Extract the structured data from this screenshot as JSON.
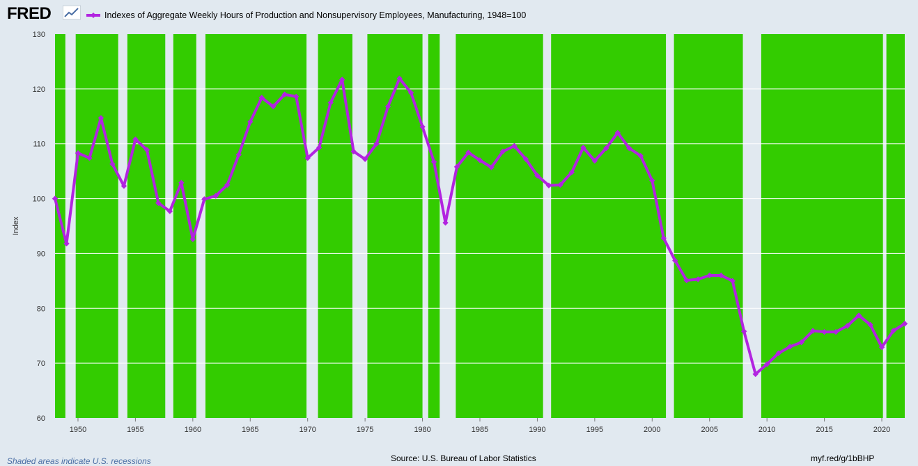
{
  "brand": {
    "logo_text": "FRED",
    "logo_icon": "line-chart-icon"
  },
  "footer": {
    "recession_note": "Shaded areas indicate U.S. recessions",
    "source": "Source: U.S. Bureau of Labor Statistics",
    "short_url": "myf.red/g/1bBHP"
  },
  "colors": {
    "background": "#e1e9f0",
    "plot_fill": "#33cc00",
    "recession_band": "#e1e9f0",
    "series": "#b224e0",
    "gridline": "#ffffff"
  },
  "chart_data": {
    "type": "line",
    "title": "",
    "xlabel": "",
    "ylabel": "Index",
    "xlim": [
      1948,
      2022
    ],
    "ylim": [
      60,
      130
    ],
    "yticks": [
      60,
      70,
      80,
      90,
      100,
      110,
      120,
      130
    ],
    "xticks": [
      1950,
      1955,
      1960,
      1965,
      1970,
      1975,
      1980,
      1985,
      1990,
      1995,
      2000,
      2005,
      2010,
      2015,
      2020
    ],
    "grid": true,
    "legend_position": "top-left",
    "recessions": [
      [
        1948.9,
        1949.8
      ],
      [
        1953.5,
        1954.3
      ],
      [
        1957.6,
        1958.3
      ],
      [
        1960.3,
        1961.1
      ],
      [
        1969.9,
        1970.9
      ],
      [
        1973.9,
        1975.2
      ],
      [
        1980.0,
        1980.5
      ],
      [
        1981.5,
        1982.9
      ],
      [
        1990.5,
        1991.2
      ],
      [
        2001.2,
        2001.9
      ],
      [
        2007.9,
        2009.5
      ],
      [
        2020.1,
        2020.4
      ]
    ],
    "series": [
      {
        "name": "Indexes of Aggregate Weekly Hours of Production and Nonsupervisory Employees, Manufacturing, 1948=100",
        "x": [
          1948,
          1949,
          1950,
          1951,
          1952,
          1953,
          1954,
          1955,
          1956,
          1957,
          1958,
          1959,
          1960,
          1961,
          1962,
          1963,
          1964,
          1965,
          1966,
          1967,
          1968,
          1969,
          1970,
          1971,
          1972,
          1973,
          1974,
          1975,
          1976,
          1977,
          1978,
          1979,
          1980,
          1981,
          1982,
          1983,
          1984,
          1985,
          1986,
          1987,
          1988,
          1989,
          1990,
          1991,
          1992,
          1993,
          1994,
          1995,
          1996,
          1997,
          1998,
          1999,
          2000,
          2001,
          2002,
          2003,
          2004,
          2005,
          2006,
          2007,
          2008,
          2009,
          2010,
          2011,
          2012,
          2013,
          2014,
          2015,
          2016,
          2017,
          2018,
          2019,
          2020,
          2021,
          2022
        ],
        "values": [
          100.0,
          91.8,
          108.3,
          107.4,
          114.7,
          106.3,
          102.3,
          110.8,
          108.9,
          99.2,
          97.7,
          102.9,
          92.6,
          99.9,
          100.5,
          102.5,
          108.0,
          114.0,
          118.4,
          116.8,
          119.0,
          118.6,
          107.4,
          109.3,
          117.5,
          121.7,
          108.6,
          107.2,
          110.0,
          116.8,
          121.9,
          119.3,
          113.1,
          106.7,
          95.6,
          105.8,
          108.4,
          107.0,
          105.7,
          108.6,
          109.6,
          107.2,
          104.2,
          102.4,
          102.5,
          104.8,
          109.3,
          106.9,
          109.2,
          112.0,
          109.2,
          107.8,
          103.3,
          92.8,
          88.7,
          85.1,
          85.3,
          86.0,
          86.0,
          85.0,
          75.8,
          68.0,
          69.8,
          71.8,
          73.0,
          73.8,
          75.9,
          75.7,
          75.7,
          76.8,
          78.7,
          77.0,
          72.9,
          75.9,
          77.2
        ]
      }
    ]
  }
}
